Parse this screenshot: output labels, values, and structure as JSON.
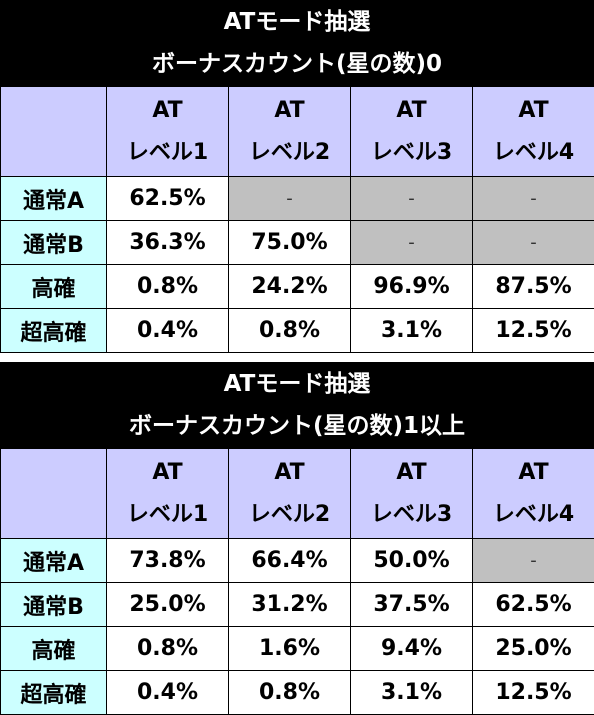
{
  "tables": [
    {
      "title": "ATモード抽選",
      "subtitle": "ボーナスカウント(星の数)0",
      "columns": [
        {
          "line1": "AT",
          "line2": "レベル1"
        },
        {
          "line1": "AT",
          "line2": "レベル2"
        },
        {
          "line1": "AT",
          "line2": "レベル3"
        },
        {
          "line1": "AT",
          "line2": "レベル4"
        }
      ],
      "rows": [
        {
          "label": "通常A",
          "cells": [
            "62.5%",
            "-",
            "-",
            "-"
          ]
        },
        {
          "label": "通常B",
          "cells": [
            "36.3%",
            "75.0%",
            "-",
            "-"
          ]
        },
        {
          "label": "高確",
          "cells": [
            "0.8%",
            "24.2%",
            "96.9%",
            "87.5%"
          ]
        },
        {
          "label": "超高確",
          "cells": [
            "0.4%",
            "0.8%",
            "3.1%",
            "12.5%"
          ]
        }
      ]
    },
    {
      "title": "ATモード抽選",
      "subtitle": "ボーナスカウント(星の数)1以上",
      "columns": [
        {
          "line1": "AT",
          "line2": "レベル1"
        },
        {
          "line1": "AT",
          "line2": "レベル2"
        },
        {
          "line1": "AT",
          "line2": "レベル3"
        },
        {
          "line1": "AT",
          "line2": "レベル4"
        }
      ],
      "rows": [
        {
          "label": "通常A",
          "cells": [
            "73.8%",
            "66.4%",
            "50.0%",
            "-"
          ]
        },
        {
          "label": "通常B",
          "cells": [
            "25.0%",
            "31.2%",
            "37.5%",
            "62.5%"
          ]
        },
        {
          "label": "高確",
          "cells": [
            "0.8%",
            "1.6%",
            "9.4%",
            "25.0%"
          ]
        },
        {
          "label": "超高確",
          "cells": [
            "0.4%",
            "0.8%",
            "3.1%",
            "12.5%"
          ]
        }
      ]
    }
  ],
  "colors": {
    "title_bg": "#000000",
    "header_bg": "#ccccff",
    "row_header_bg": "#ccffff",
    "empty_cell_bg": "#c0c0c0"
  }
}
